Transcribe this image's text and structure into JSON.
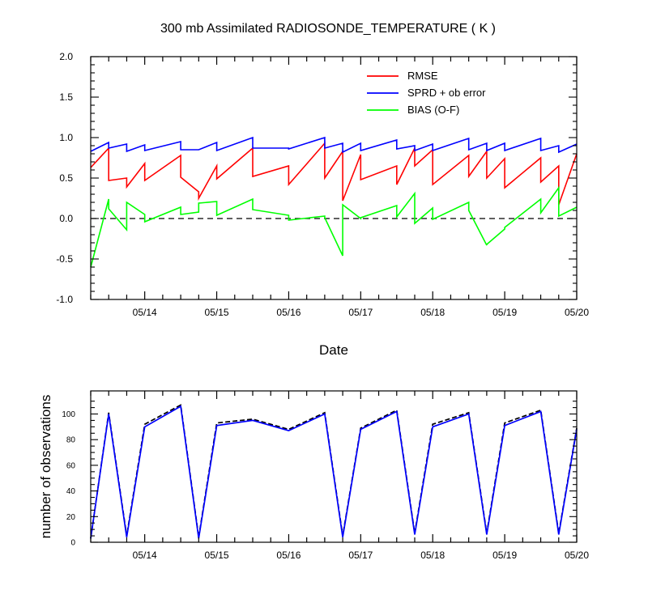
{
  "chart_data": [
    {
      "type": "line",
      "title": "300 mb Assimilated RADIOSONDE_TEMPERATURE ( K )",
      "xlabel": "Date",
      "ylabel": "",
      "x_tick_labels": [
        "05/14",
        "05/15",
        "05/16",
        "05/17",
        "05/18",
        "05/19",
        "05/20"
      ],
      "y_tick_labels": [
        "-1.0",
        "-0.5",
        "0.0",
        "0.5",
        "1.0",
        "1.5",
        "2.0"
      ],
      "ylim": [
        -1.0,
        2.0
      ],
      "xlim": [
        13.25,
        20.0
      ],
      "zero_line": "dashed",
      "legend_position": "top-right",
      "series": [
        {
          "name": "RMSE",
          "color": "#ff0000",
          "points": [
            [
              13.25,
              0.63
            ],
            [
              13.5,
              0.87
            ],
            [
              13.5,
              0.47
            ],
            [
              13.75,
              0.5
            ],
            [
              13.75,
              0.39
            ],
            [
              14.0,
              0.68
            ],
            [
              14.0,
              0.47
            ],
            [
              14.5,
              0.78
            ],
            [
              14.5,
              0.51
            ],
            [
              14.75,
              0.33
            ],
            [
              14.75,
              0.25
            ],
            [
              15.0,
              0.65
            ],
            [
              15.0,
              0.49
            ],
            [
              15.5,
              0.87
            ],
            [
              15.5,
              0.52
            ],
            [
              16.0,
              0.65
            ],
            [
              16.0,
              0.42
            ],
            [
              16.5,
              0.93
            ],
            [
              16.5,
              0.5
            ],
            [
              16.75,
              0.83
            ],
            [
              16.75,
              0.22
            ],
            [
              17.0,
              0.79
            ],
            [
              17.0,
              0.48
            ],
            [
              17.5,
              0.65
            ],
            [
              17.5,
              0.42
            ],
            [
              17.75,
              0.87
            ],
            [
              17.75,
              0.65
            ],
            [
              18.0,
              0.85
            ],
            [
              18.0,
              0.42
            ],
            [
              18.5,
              0.78
            ],
            [
              18.5,
              0.52
            ],
            [
              18.75,
              0.83
            ],
            [
              18.75,
              0.5
            ],
            [
              19.0,
              0.74
            ],
            [
              19.0,
              0.38
            ],
            [
              19.5,
              0.75
            ],
            [
              19.5,
              0.45
            ],
            [
              19.75,
              0.65
            ],
            [
              19.75,
              0.17
            ],
            [
              20.0,
              0.8
            ]
          ]
        },
        {
          "name": "SPRD + ob error",
          "color": "#0000ff",
          "points": [
            [
              13.25,
              0.83
            ],
            [
              13.5,
              0.94
            ],
            [
              13.5,
              0.87
            ],
            [
              13.75,
              0.92
            ],
            [
              13.75,
              0.83
            ],
            [
              14.0,
              0.91
            ],
            [
              14.0,
              0.84
            ],
            [
              14.5,
              0.95
            ],
            [
              14.5,
              0.85
            ],
            [
              14.75,
              0.85
            ],
            [
              14.75,
              0.85
            ],
            [
              15.0,
              0.94
            ],
            [
              15.0,
              0.84
            ],
            [
              15.5,
              1.0
            ],
            [
              15.5,
              0.87
            ],
            [
              16.0,
              0.87
            ],
            [
              16.0,
              0.86
            ],
            [
              16.5,
              1.0
            ],
            [
              16.5,
              0.87
            ],
            [
              16.75,
              0.93
            ],
            [
              16.75,
              0.82
            ],
            [
              17.0,
              0.93
            ],
            [
              17.0,
              0.84
            ],
            [
              17.5,
              0.97
            ],
            [
              17.5,
              0.86
            ],
            [
              17.75,
              0.9
            ],
            [
              17.75,
              0.84
            ],
            [
              18.0,
              0.92
            ],
            [
              18.0,
              0.84
            ],
            [
              18.5,
              0.99
            ],
            [
              18.5,
              0.85
            ],
            [
              18.75,
              0.93
            ],
            [
              18.75,
              0.84
            ],
            [
              19.0,
              0.93
            ],
            [
              19.0,
              0.84
            ],
            [
              19.5,
              0.99
            ],
            [
              19.5,
              0.84
            ],
            [
              19.75,
              0.9
            ],
            [
              19.75,
              0.82
            ],
            [
              20.0,
              0.92
            ]
          ]
        },
        {
          "name": "BIAS (O-F)",
          "color": "#00ff00",
          "points": [
            [
              13.25,
              -0.6
            ],
            [
              13.5,
              0.24
            ],
            [
              13.5,
              0.12
            ],
            [
              13.75,
              -0.14
            ],
            [
              13.75,
              0.2
            ],
            [
              14.0,
              0.05
            ],
            [
              14.0,
              -0.04
            ],
            [
              14.5,
              0.14
            ],
            [
              14.5,
              0.05
            ],
            [
              14.75,
              0.08
            ],
            [
              14.75,
              0.19
            ],
            [
              15.0,
              0.21
            ],
            [
              15.0,
              0.04
            ],
            [
              15.5,
              0.24
            ],
            [
              15.5,
              0.11
            ],
            [
              16.0,
              0.04
            ],
            [
              16.0,
              -0.02
            ],
            [
              16.5,
              0.03
            ],
            [
              16.5,
              0.01
            ],
            [
              16.75,
              -0.46
            ],
            [
              16.75,
              0.17
            ],
            [
              17.0,
              0.0
            ],
            [
              17.0,
              0.01
            ],
            [
              17.5,
              0.16
            ],
            [
              17.5,
              0.02
            ],
            [
              17.75,
              0.31
            ],
            [
              17.75,
              -0.06
            ],
            [
              18.0,
              0.13
            ],
            [
              18.0,
              -0.01
            ],
            [
              18.5,
              0.2
            ],
            [
              18.5,
              0.1
            ],
            [
              18.75,
              -0.33
            ],
            [
              18.75,
              -0.32
            ],
            [
              19.0,
              -0.13
            ],
            [
              19.0,
              -0.11
            ],
            [
              19.5,
              0.24
            ],
            [
              19.5,
              0.07
            ],
            [
              19.75,
              0.38
            ],
            [
              19.75,
              0.03
            ],
            [
              20.0,
              0.14
            ]
          ]
        }
      ]
    },
    {
      "type": "line",
      "title": "",
      "xlabel": "",
      "ylabel": "number of observations",
      "x_tick_labels": [
        "05/14",
        "05/15",
        "05/16",
        "05/17",
        "05/18",
        "05/19",
        "05/20"
      ],
      "y_tick_labels": [
        "0",
        "20",
        "40",
        "60",
        "80",
        "100"
      ],
      "ylim": [
        0,
        118
      ],
      "xlim": [
        13.25,
        20.0
      ],
      "series": [
        {
          "name": "",
          "color": "#000000",
          "dash": "dashed",
          "points": [
            [
              13.25,
              3
            ],
            [
              13.5,
              101
            ],
            [
              13.75,
              5
            ],
            [
              14.0,
              92
            ],
            [
              14.5,
              107
            ],
            [
              14.75,
              4
            ],
            [
              15.0,
              93
            ],
            [
              15.5,
              96
            ],
            [
              16.0,
              88
            ],
            [
              16.5,
              101
            ],
            [
              16.75,
              5
            ],
            [
              17.0,
              89
            ],
            [
              17.5,
              103
            ],
            [
              17.75,
              7
            ],
            [
              18.0,
              92
            ],
            [
              18.5,
              101
            ],
            [
              18.75,
              7
            ],
            [
              19.0,
              93
            ],
            [
              19.5,
              103
            ],
            [
              19.75,
              7
            ],
            [
              20.0,
              89
            ]
          ]
        },
        {
          "name": "",
          "color": "#0000ff",
          "dash": "solid",
          "points": [
            [
              13.25,
              3
            ],
            [
              13.5,
              100
            ],
            [
              13.75,
              4
            ],
            [
              14.0,
              90
            ],
            [
              14.5,
              106
            ],
            [
              14.75,
              3
            ],
            [
              15.0,
              91
            ],
            [
              15.5,
              95
            ],
            [
              16.0,
              87
            ],
            [
              16.5,
              100
            ],
            [
              16.75,
              4
            ],
            [
              17.0,
              88
            ],
            [
              17.5,
              102
            ],
            [
              17.75,
              6
            ],
            [
              18.0,
              90
            ],
            [
              18.5,
              100
            ],
            [
              18.75,
              6
            ],
            [
              19.0,
              91
            ],
            [
              19.5,
              102
            ],
            [
              19.75,
              6
            ],
            [
              20.0,
              88
            ]
          ]
        }
      ]
    }
  ]
}
